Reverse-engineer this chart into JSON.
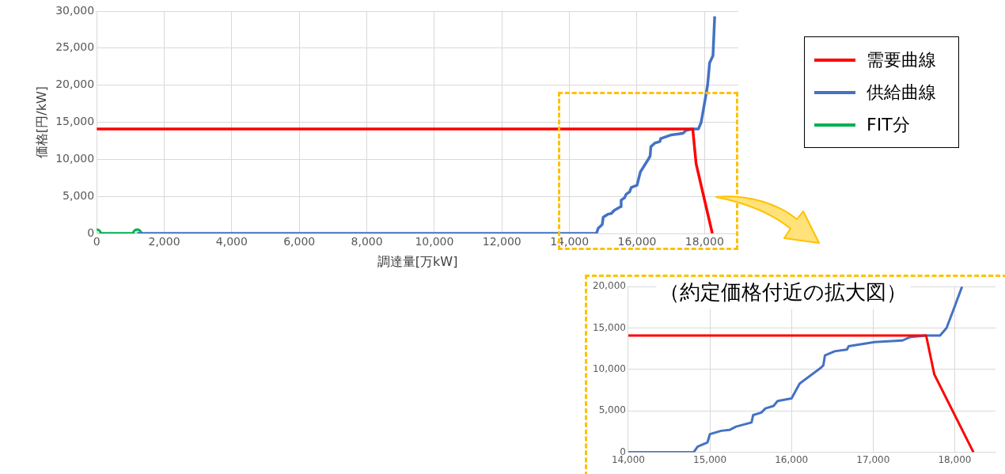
{
  "chart_data": [
    {
      "type": "line",
      "xlabel": "調達量[万kW]",
      "ylabel": "価格[円/kW]",
      "xlim": [
        0,
        19000
      ],
      "xticks": [
        0,
        {
          "value": 2000,
          "label": "2,000"
        },
        {
          "value": 4000,
          "label": "4,000"
        },
        {
          "value": 6000,
          "label": "6,000"
        },
        {
          "value": 8000,
          "label": "8,000"
        },
        {
          "value": 10000,
          "label": "10,000"
        },
        {
          "value": 12000,
          "label": "12,000"
        },
        {
          "value": 14000,
          "label": "14,000"
        },
        {
          "value": 16000,
          "label": "16,000"
        },
        {
          "value": 18000,
          "label": "18,000"
        }
      ],
      "ylim": [
        0,
        30000
      ],
      "yticks": [
        0,
        {
          "value": 5000,
          "label": "5,000"
        },
        {
          "value": 10000,
          "label": "10,000"
        },
        {
          "value": 15000,
          "label": "15,000"
        },
        {
          "value": 20000,
          "label": "20,000"
        },
        {
          "value": 25000,
          "label": "25,000"
        },
        {
          "value": 30000,
          "label": "30,000"
        }
      ],
      "grid": true,
      "legend": "right",
      "series": [
        {
          "name": "需要曲線",
          "color": "#ff0000",
          "marker": "none",
          "x": [
            0,
            17650,
            17750,
            18230
          ],
          "values": [
            14100,
            14100,
            9400,
            0
          ]
        },
        {
          "name": "供給曲線",
          "color": "#4472c4",
          "marker": "none",
          "x": [
            1200,
            14800,
            14850,
            14970,
            15000,
            15140,
            15240,
            15320,
            15510,
            15530,
            15630,
            15680,
            15780,
            15830,
            16000,
            16100,
            16360,
            16390,
            16410,
            16530,
            16680,
            16700,
            17020,
            17360,
            17450,
            17640,
            17820,
            17900,
            18000,
            18090,
            18150,
            18250,
            18300
          ],
          "values": [
            0,
            0,
            700,
            1200,
            2200,
            2600,
            2700,
            3100,
            3600,
            4500,
            4800,
            5300,
            5600,
            6200,
            6500,
            8300,
            10200,
            10500,
            11700,
            12200,
            12400,
            12800,
            13300,
            13500,
            13900,
            14100,
            14100,
            15000,
            17600,
            20000,
            23000,
            24000,
            29300
          ]
        },
        {
          "name": "FIT分",
          "color": "#00b050",
          "marker": "circle",
          "x": [
            0,
            1200
          ],
          "values": [
            0,
            0
          ]
        }
      ]
    },
    {
      "type": "line",
      "title": "（約定価格付近の拡大図）",
      "xlim": [
        14000,
        18500
      ],
      "xticks": [
        {
          "value": 14000,
          "label": "14,000"
        },
        {
          "value": 15000,
          "label": "15,000"
        },
        {
          "value": 16000,
          "label": "16,000"
        },
        {
          "value": 17000,
          "label": "17,000"
        },
        {
          "value": 18000,
          "label": "18,000"
        }
      ],
      "ylim": [
        0,
        20000
      ],
      "yticks": [
        0,
        {
          "value": 5000,
          "label": "5,000"
        },
        {
          "value": 10000,
          "label": "10,000"
        },
        {
          "value": 15000,
          "label": "15,000"
        },
        {
          "value": 20000,
          "label": "20,000"
        }
      ],
      "grid": true,
      "series": [
        {
          "color": "#ff0000",
          "marker": "none",
          "x": [
            14000,
            17650,
            17750,
            18230
          ],
          "values": [
            14100,
            14100,
            9400,
            0
          ]
        },
        {
          "color": "#4472c4",
          "marker": "none",
          "x": [
            14000,
            14800,
            14850,
            14970,
            15000,
            15140,
            15240,
            15320,
            15510,
            15530,
            15630,
            15680,
            15780,
            15830,
            16000,
            16100,
            16360,
            16390,
            16410,
            16530,
            16680,
            16700,
            17020,
            17360,
            17450,
            17640,
            17820,
            17900,
            18000,
            18090
          ],
          "values": [
            0,
            0,
            700,
            1200,
            2200,
            2600,
            2700,
            3100,
            3600,
            4500,
            4800,
            5300,
            5600,
            6200,
            6500,
            8300,
            10200,
            10500,
            11700,
            12200,
            12400,
            12800,
            13300,
            13500,
            13900,
            14100,
            14100,
            15000,
            17600,
            20000
          ]
        }
      ]
    }
  ]
}
